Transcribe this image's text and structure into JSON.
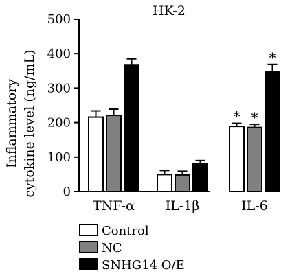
{
  "chart_data": {
    "type": "bar",
    "title": "HK-2",
    "ylabel_lines": [
      "Inflammatory",
      "cytokine level (ng/mL)"
    ],
    "xlabel": "",
    "ylim": [
      0,
      500
    ],
    "yticks": [
      0,
      100,
      200,
      300,
      400,
      500
    ],
    "categories": [
      "TNF-α",
      "IL-1β",
      "IL-6"
    ],
    "series": [
      {
        "name": "Control",
        "color": "#ffffff",
        "values": [
          216,
          49,
          189
        ],
        "errors": [
          18,
          12,
          9
        ]
      },
      {
        "name": "NC",
        "color": "#808080",
        "values": [
          221,
          48,
          186
        ],
        "errors": [
          18,
          11,
          9
        ]
      },
      {
        "name": "SNHG14 O/E",
        "color": "#000000",
        "values": [
          368,
          80,
          347
        ],
        "errors": [
          17,
          10,
          22
        ]
      }
    ],
    "significance_marker": "*",
    "significance": [
      [
        false,
        false,
        true
      ],
      [
        false,
        false,
        true
      ],
      [
        false,
        false,
        true
      ]
    ],
    "legend_position": "bottom-left",
    "grid": false
  }
}
